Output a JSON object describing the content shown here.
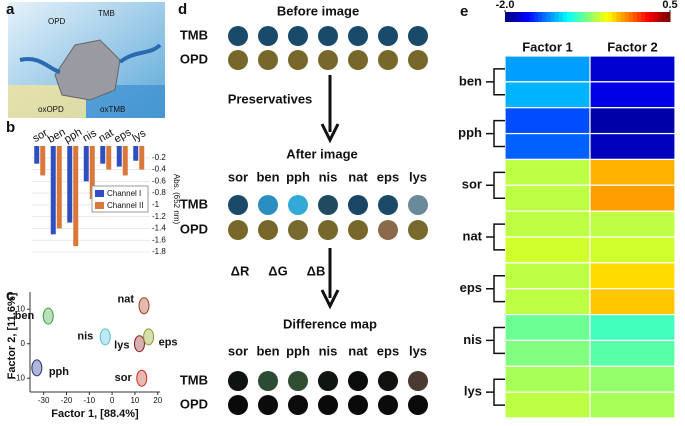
{
  "panel_labels": [
    "a",
    "b",
    "c",
    "d",
    "e"
  ],
  "panel_a": {
    "molecules": [
      "OPD",
      "TMB"
    ],
    "products": [
      "oxOPD",
      "oxTMB"
    ]
  },
  "panel_d": {
    "titles": [
      "Before image",
      "After image",
      "Difference map"
    ],
    "reagent": "Preservatives",
    "channels": [
      "ΔR",
      "ΔG",
      "ΔB"
    ],
    "rows": [
      "TMB",
      "OPD"
    ],
    "categories": [
      "sor",
      "ben",
      "pph",
      "nis",
      "nat",
      "eps",
      "lys"
    ],
    "before_colors": [
      [
        "#1a4a6a",
        "#1a4a6a",
        "#1a4a6a",
        "#1a4a6a",
        "#1a4a6a",
        "#1a4a6a",
        "#1a4a6a"
      ],
      [
        "#77672b",
        "#77672b",
        "#77672b",
        "#77672b",
        "#77672b",
        "#77672b",
        "#77672b"
      ]
    ],
    "after_colors": [
      [
        "#1b4968",
        "#2a8fc0",
        "#33a9d8",
        "#1f4a60",
        "#1b4565",
        "#1c4a66",
        "#6a8a9a"
      ],
      [
        "#77672b",
        "#77672b",
        "#766a2e",
        "#76682c",
        "#77672b",
        "#8a6a4a",
        "#78692d"
      ]
    ],
    "difference_colors": [
      [
        "#0e1310",
        "#2b4b34",
        "#304f32",
        "#111511",
        "#0b0c0c",
        "#101210",
        "#4a3a30"
      ],
      [
        "#0a0a0a",
        "#0b0b0b",
        "#0c0c0c",
        "#0a0a0a",
        "#0a0a0a",
        "#0c0b0b",
        "#0b0b0b"
      ]
    ]
  },
  "chart_data": [
    {
      "type": "bar",
      "categories": [
        "sor",
        "ben",
        "pph",
        "nis",
        "nat",
        "eps",
        "lys"
      ],
      "y_label": "Abs. (652 nm)",
      "ylim": [
        -1.8,
        0
      ],
      "yticks": [
        -0.2,
        -0.4,
        -0.6,
        -0.8,
        -1.0,
        -1.2,
        -1.4,
        -1.6,
        -1.8
      ],
      "series": [
        {
          "name": "Channel I",
          "color": "#2f4fc0",
          "values": [
            -0.3,
            -1.5,
            -1.3,
            -0.6,
            -0.3,
            -0.35,
            -0.25
          ]
        },
        {
          "name": "Channel II",
          "color": "#d9783a",
          "values": [
            -0.5,
            -1.4,
            -1.7,
            -0.9,
            -0.4,
            -0.5,
            -0.4
          ]
        }
      ]
    },
    {
      "type": "scatter",
      "x_label": "Factor 1, [88.4%]",
      "y_label": "Factor 2, [11.6%]",
      "xlim": [
        -36,
        21
      ],
      "ylim": [
        -14,
        15
      ],
      "xticks": [
        -30,
        -20,
        -10,
        0,
        10,
        20
      ],
      "yticks": [
        -10,
        0,
        10
      ],
      "series": [
        {
          "name": "ben",
          "color": "#3aa23a",
          "x": [
            -28
          ],
          "values": [
            8
          ]
        },
        {
          "name": "pph",
          "color": "#1f2f8a",
          "x": [
            -33
          ],
          "values": [
            -7
          ]
        },
        {
          "name": "nis",
          "color": "#4fc0d8",
          "x": [
            -3
          ],
          "values": [
            2
          ]
        },
        {
          "name": "nat",
          "color": "#a0401a",
          "x": [
            14
          ],
          "values": [
            11
          ]
        },
        {
          "name": "lys",
          "color": "#8a1f1f",
          "x": [
            12
          ],
          "values": [
            0
          ]
        },
        {
          "name": "eps",
          "color": "#8f9a20",
          "x": [
            16
          ],
          "values": [
            2
          ]
        },
        {
          "name": "sor",
          "color": "#c23020",
          "x": [
            13
          ],
          "values": [
            -10
          ]
        }
      ]
    },
    {
      "type": "heatmap",
      "columns": [
        "Factor 1",
        "Factor 2"
      ],
      "colorbar": {
        "lim": [
          -2,
          0.5
        ],
        "ticks": [
          {
            "value": -2,
            "label": "-2.0"
          },
          0.5
        ]
      },
      "groups": [
        {
          "name": "ben",
          "values": [
            [
              -1.3,
              -1.8
            ],
            [
              -1.25,
              -1.75
            ]
          ]
        },
        {
          "name": "pph",
          "values": [
            [
              -1.5,
              -1.9
            ],
            [
              -1.45,
              -1.85
            ]
          ]
        },
        {
          "name": "sor",
          "values": [
            [
              -0.6,
              -0.25
            ],
            [
              -0.6,
              -0.2
            ]
          ]
        },
        {
          "name": "nat",
          "values": [
            [
              -0.6,
              -0.6
            ],
            [
              -0.55,
              -0.55
            ]
          ]
        },
        {
          "name": "eps",
          "values": [
            [
              -0.6,
              -0.35
            ],
            [
              -0.6,
              -0.3
            ]
          ]
        },
        {
          "name": "nis",
          "values": [
            [
              -0.8,
              -0.9
            ],
            [
              -0.75,
              -0.85
            ]
          ]
        },
        {
          "name": "lys",
          "values": [
            [
              -0.65,
              -0.7
            ],
            [
              -0.6,
              -0.65
            ]
          ]
        }
      ]
    }
  ]
}
